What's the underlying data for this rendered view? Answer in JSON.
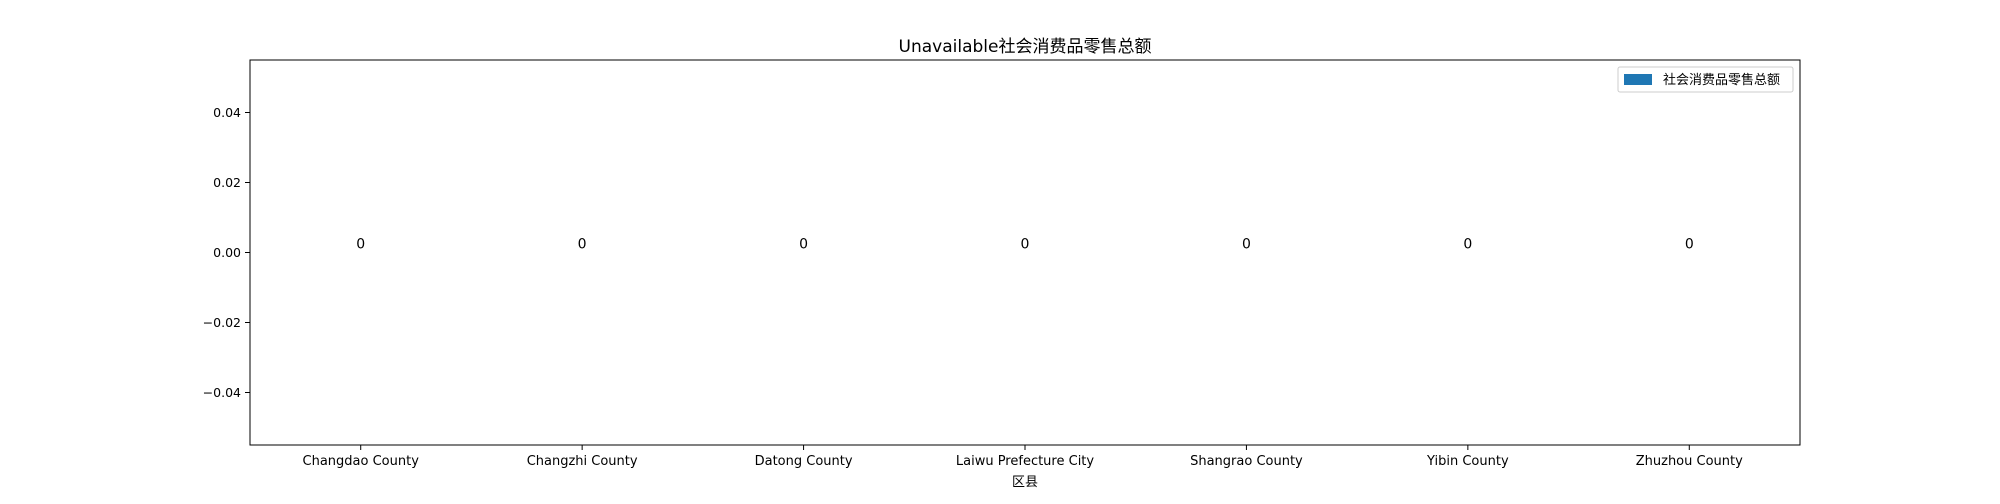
{
  "chart_data": {
    "type": "bar",
    "title": "Unavailable社会消费品零售总额",
    "xlabel": "区县",
    "ylabel": "",
    "categories": [
      "Changdao County",
      "Changzhi County",
      "Datong County",
      "Laiwu Prefecture City",
      "Shangrao County",
      "Yibin County",
      "Zhuzhou County"
    ],
    "series": [
      {
        "name": "社会消费品零售总额",
        "values": [
          0,
          0,
          0,
          0,
          0,
          0,
          0
        ],
        "data_labels": [
          "0",
          "0",
          "0",
          "0",
          "0",
          "0",
          "0"
        ],
        "color": "#1f77b4"
      }
    ],
    "ylim": [
      -0.055,
      0.055
    ],
    "yticks": [
      -0.04,
      -0.02,
      0.0,
      0.02,
      0.04
    ],
    "ytick_labels": [
      "−0.04",
      "−0.02",
      "0.00",
      "0.02",
      "0.04"
    ],
    "grid": false,
    "legend_position": "top-right"
  }
}
